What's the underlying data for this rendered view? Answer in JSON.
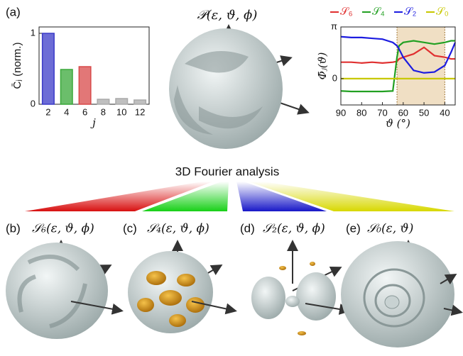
{
  "panel_labels": {
    "a": "(a)",
    "b": "(b)",
    "c": "(c)",
    "d": "(d)",
    "e": "(e)"
  },
  "function_labels": {
    "P": "𝒫(ε, ϑ, ϕ)",
    "S6": "𝒮₆(ε, ϑ, ϕ)",
    "S4": "𝒮₄(ε, ϑ, ϕ)",
    "S2": "𝒮₂(ε, ϑ, ϕ)",
    "S0": "𝒮₀(ε, ϑ)"
  },
  "caption": "3D Fourier analysis",
  "chart_data": [
    {
      "type": "bar",
      "ylabel": "C̄ⱼ (norm.)",
      "xlabel": "j",
      "categories": [
        "2",
        "4",
        "6",
        "8",
        "10",
        "12"
      ],
      "values": [
        1.0,
        0.49,
        0.53,
        0.07,
        0.08,
        0.06
      ],
      "colors": [
        "#3b3bc8",
        "#3aa83a",
        "#d84a4a",
        "#aaaaaa",
        "#aaaaaa",
        "#aaaaaa"
      ],
      "ylim": [
        0,
        1.09
      ],
      "yticks": [
        0,
        1
      ]
    },
    {
      "type": "line",
      "ylabel": "Φ̄ⱼ(ϑ)",
      "xlabel": "ϑ (°)",
      "x": [
        90,
        85,
        80,
        75,
        70,
        65,
        63,
        62,
        60,
        55,
        50,
        45,
        40,
        37,
        35
      ],
      "series": [
        {
          "name": "𝒮₆",
          "color": "#e03030",
          "values": [
            1.0,
            1.0,
            0.95,
            1.0,
            0.95,
            1.0,
            1.05,
            1.2,
            1.3,
            1.5,
            1.9,
            1.4,
            1.3,
            1.2,
            1.2
          ]
        },
        {
          "name": "𝒮₄",
          "color": "#22a022",
          "values": [
            -0.75,
            -0.78,
            -0.78,
            -0.78,
            -0.78,
            -0.75,
            1.3,
            2.0,
            2.2,
            2.3,
            2.2,
            2.1,
            2.2,
            2.3,
            2.3
          ]
        },
        {
          "name": "𝒮₂",
          "color": "#1c1ce0",
          "values": [
            2.55,
            2.5,
            2.5,
            2.45,
            2.4,
            2.2,
            2.0,
            1.8,
            1.3,
            0.5,
            0.35,
            0.4,
            0.8,
            1.6,
            2.2
          ]
        },
        {
          "name": "𝒮₀",
          "color": "#c8c800",
          "values": [
            0,
            0,
            0,
            0,
            0,
            0,
            0,
            0,
            0,
            0,
            0,
            0,
            0,
            0,
            0
          ]
        }
      ],
      "xlim": [
        90,
        35
      ],
      "xticks": [
        90,
        80,
        70,
        60,
        50,
        40
      ],
      "ylim": [
        -1.6,
        3.1416
      ],
      "yticks": [
        {
          "value": 3.1416,
          "label": "π"
        },
        0
      ],
      "shaded_range": [
        63,
        40
      ],
      "shade_color": "#f0dfc4"
    }
  ]
}
